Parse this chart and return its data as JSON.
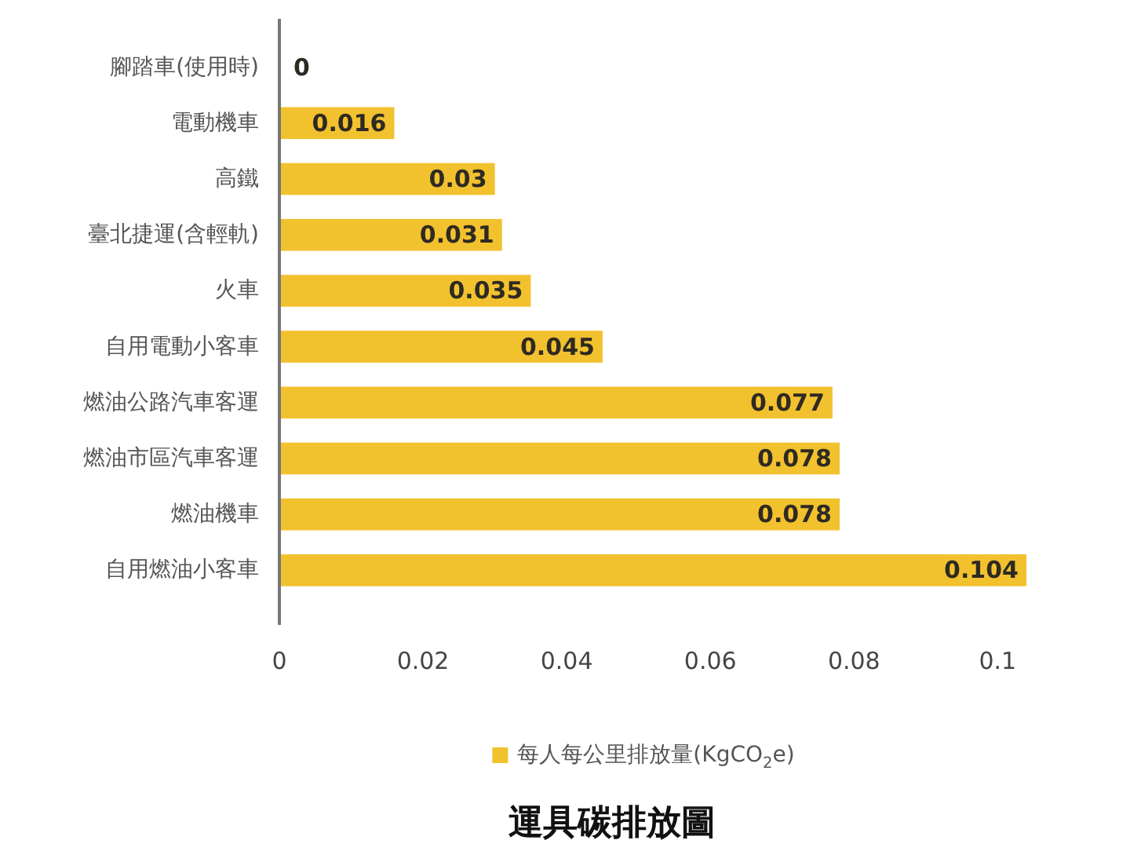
{
  "chart_data": {
    "type": "bar",
    "orientation": "horizontal",
    "title": "運具碳排放圖",
    "categories": [
      "腳踏車(使用時)",
      "電動機車",
      "高鐵",
      "臺北捷運(含輕軌)",
      "火車",
      "自用電動小客車",
      "燃油公路汽車客運",
      "燃油市區汽車客運",
      "燃油機車",
      "自用燃油小客車"
    ],
    "series": [
      {
        "name": "每人每公里排放量(KgCO$_{2}$e)",
        "color": "#f2c12e",
        "values": [
          0,
          0.016,
          0.03,
          0.031,
          0.035,
          0.045,
          0.077,
          0.078,
          0.078,
          0.104
        ]
      }
    ],
    "xlim": [
      0,
      0.104
    ],
    "xticks": [
      0,
      0.02,
      0.04,
      0.06,
      0.08,
      0.1
    ],
    "data_labels": true,
    "legend": "bottom"
  }
}
